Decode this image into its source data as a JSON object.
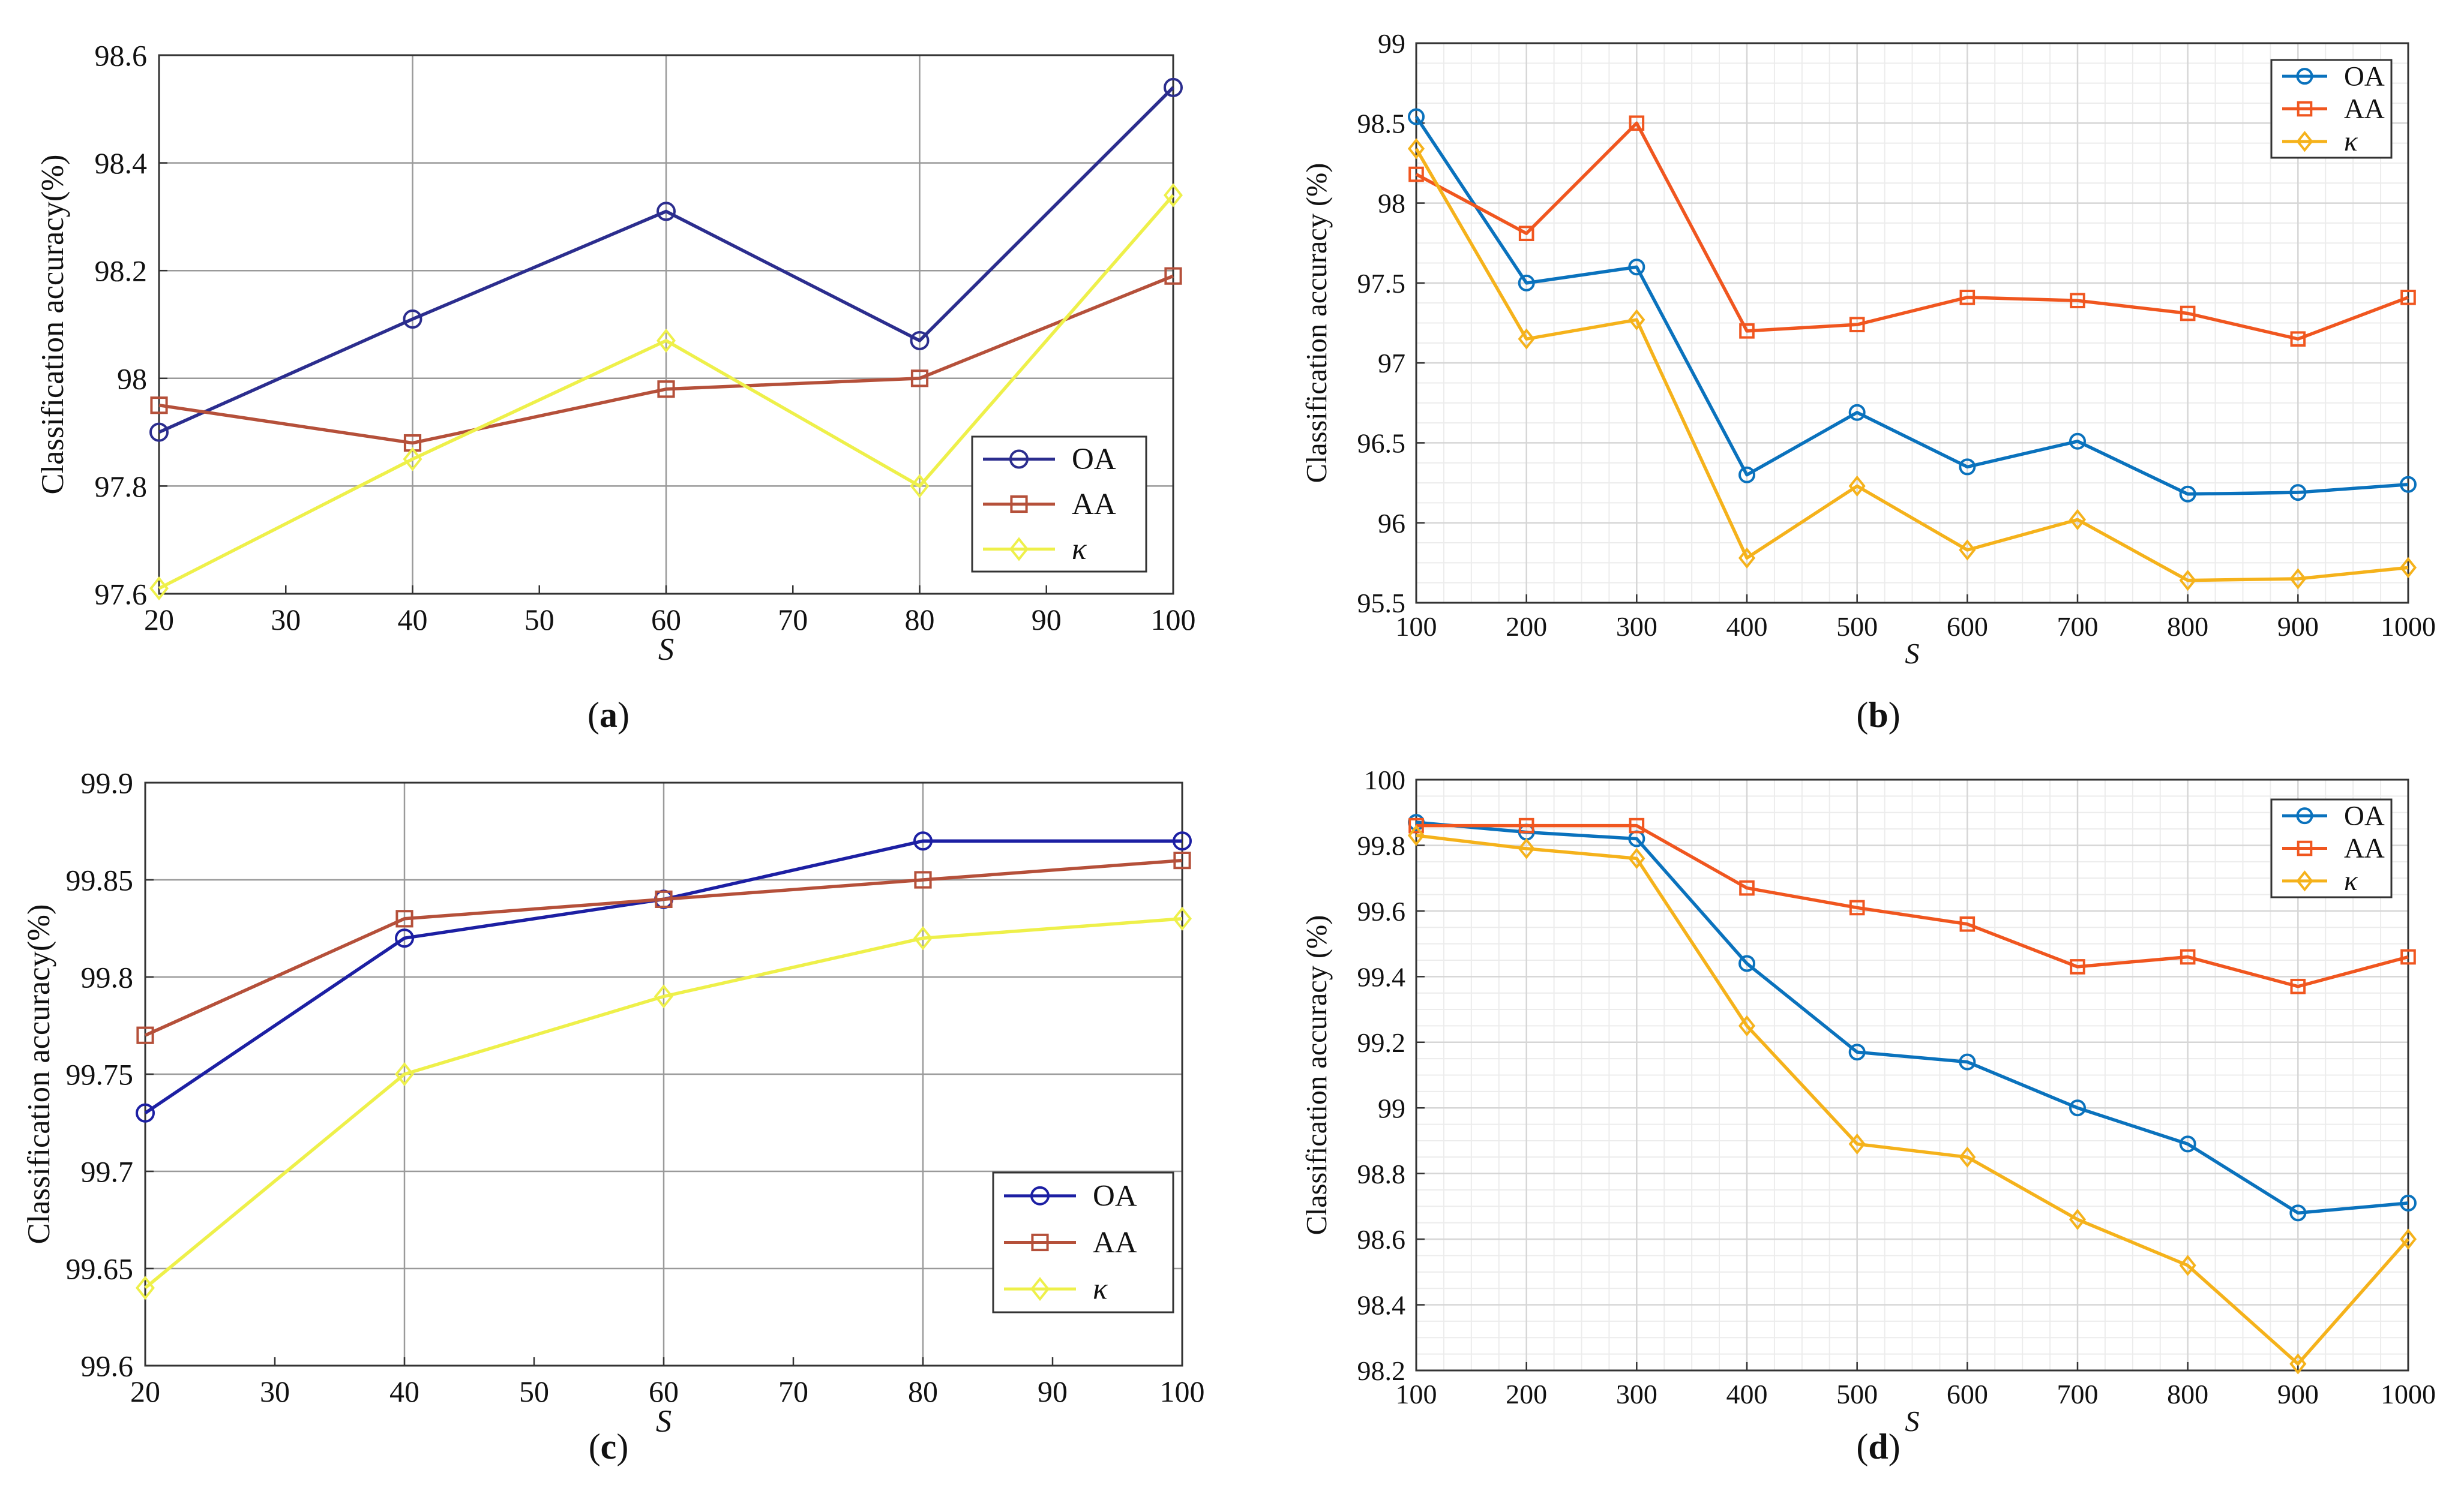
{
  "figure": {
    "panel_labels": [
      {
        "letter": "a"
      },
      {
        "letter": "b"
      },
      {
        "letter": "c"
      },
      {
        "letter": "d"
      }
    ]
  },
  "chart_data": [
    {
      "type": "line",
      "panel": "a",
      "xlabel": "S",
      "ylabel": "Classification accuracy(%)",
      "x": [
        20,
        40,
        60,
        80,
        100
      ],
      "xlim": [
        20,
        100
      ],
      "ylim": [
        97.6,
        98.6
      ],
      "xticks": [
        20,
        30,
        40,
        50,
        60,
        70,
        80,
        90,
        100
      ],
      "yticks": [
        97.6,
        97.8,
        98,
        98.2,
        98.4,
        98.6
      ],
      "ytick_labels": [
        "97.6",
        "97.8",
        "98",
        "98.2",
        "98.4",
        "98.6"
      ],
      "grid": "major",
      "legend_position": "bottom-right",
      "series": [
        {
          "name": "OA",
          "marker": "circle",
          "color": "#2b2d8e",
          "values": [
            97.9,
            98.11,
            98.31,
            98.07,
            98.54
          ]
        },
        {
          "name": "AA",
          "marker": "square",
          "color": "#b5503a",
          "values": [
            97.95,
            97.88,
            97.98,
            98.0,
            98.19
          ]
        },
        {
          "name": "κ",
          "marker": "diamond",
          "color": "#eef04a",
          "values": [
            97.61,
            97.85,
            98.07,
            97.8,
            98.34
          ]
        }
      ]
    },
    {
      "type": "line",
      "panel": "b",
      "xlabel": "S",
      "ylabel": "Classification accuracy (%)",
      "x": [
        100,
        200,
        300,
        400,
        500,
        600,
        700,
        800,
        900,
        1000
      ],
      "xlim": [
        100,
        1000
      ],
      "ylim": [
        95.5,
        99
      ],
      "xticks": [
        100,
        200,
        300,
        400,
        500,
        600,
        700,
        800,
        900,
        1000
      ],
      "yticks": [
        95.5,
        96,
        96.5,
        97,
        97.5,
        98,
        98.5,
        99
      ],
      "ytick_labels": [
        "95.5",
        "96",
        "96.5",
        "97",
        "97.5",
        "98",
        "98.5",
        "99"
      ],
      "grid": "fine",
      "legend_position": "top-right",
      "series": [
        {
          "name": "OA",
          "marker": "circle",
          "color": "#0a72bd",
          "values": [
            98.54,
            97.5,
            97.6,
            96.3,
            96.69,
            96.35,
            96.51,
            96.18,
            96.19,
            96.24
          ]
        },
        {
          "name": "AA",
          "marker": "square",
          "color": "#f0561f",
          "values": [
            98.18,
            97.81,
            98.5,
            97.2,
            97.24,
            97.41,
            97.39,
            97.31,
            97.15,
            97.41
          ]
        },
        {
          "name": "κ",
          "marker": "diamond",
          "color": "#f5b21b",
          "values": [
            98.34,
            97.15,
            97.27,
            95.78,
            96.23,
            95.83,
            96.02,
            95.64,
            95.65,
            95.72
          ]
        }
      ]
    },
    {
      "type": "line",
      "panel": "c",
      "xlabel": "S",
      "ylabel": "Classification accuracy(%)",
      "x": [
        20,
        40,
        60,
        80,
        100
      ],
      "xlim": [
        20,
        100
      ],
      "ylim": [
        99.6,
        99.9
      ],
      "xticks": [
        20,
        30,
        40,
        50,
        60,
        70,
        80,
        90,
        100
      ],
      "yticks": [
        99.6,
        99.65,
        99.7,
        99.75,
        99.8,
        99.85,
        99.9
      ],
      "ytick_labels": [
        "99.6",
        "99.65",
        "99.7",
        "99.75",
        "99.8",
        "99.85",
        "99.9"
      ],
      "grid": "major",
      "legend_position": "bottom-right",
      "series": [
        {
          "name": "OA",
          "marker": "circle",
          "color": "#1c1fa3",
          "values": [
            99.73,
            99.82,
            99.84,
            99.87,
            99.87
          ]
        },
        {
          "name": "AA",
          "marker": "square",
          "color": "#b5503a",
          "values": [
            99.77,
            99.83,
            99.84,
            99.85,
            99.86
          ]
        },
        {
          "name": "κ",
          "marker": "diamond",
          "color": "#eef04a",
          "values": [
            99.64,
            99.75,
            99.79,
            99.82,
            99.83
          ]
        }
      ]
    },
    {
      "type": "line",
      "panel": "d",
      "xlabel": "S",
      "ylabel": "Classification accuracy (%)",
      "x": [
        100,
        200,
        300,
        400,
        500,
        600,
        700,
        800,
        900,
        1000
      ],
      "xlim": [
        100,
        1000
      ],
      "ylim": [
        98.2,
        100
      ],
      "xticks": [
        100,
        200,
        300,
        400,
        500,
        600,
        700,
        800,
        900,
        1000
      ],
      "yticks": [
        98.2,
        98.4,
        98.6,
        98.8,
        99,
        99.2,
        99.4,
        99.6,
        99.8,
        100
      ],
      "ytick_labels": [
        "98.2",
        "98.4",
        "98.6",
        "98.8",
        "99",
        "99.2",
        "99.4",
        "99.6",
        "99.8",
        "100"
      ],
      "grid": "fine",
      "legend_position": "top-right",
      "series": [
        {
          "name": "OA",
          "marker": "circle",
          "color": "#0a72bd",
          "values": [
            99.87,
            99.84,
            99.82,
            99.44,
            99.17,
            99.14,
            99.0,
            98.89,
            98.68,
            98.71
          ]
        },
        {
          "name": "AA",
          "marker": "square",
          "color": "#f0561f",
          "values": [
            99.86,
            99.86,
            99.86,
            99.67,
            99.61,
            99.56,
            99.43,
            99.46,
            99.37,
            99.46
          ]
        },
        {
          "name": "κ",
          "marker": "diamond",
          "color": "#f5b21b",
          "values": [
            99.83,
            99.79,
            99.76,
            99.25,
            98.89,
            98.85,
            98.66,
            98.52,
            98.22,
            98.6
          ]
        }
      ]
    }
  ]
}
